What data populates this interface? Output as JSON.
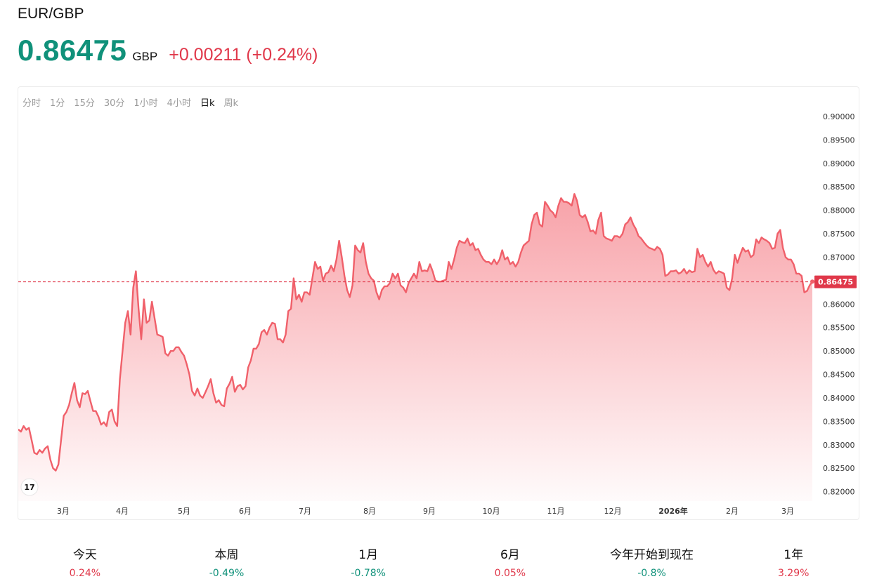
{
  "header": {
    "symbol": "EUR/GBP",
    "price": "0.86475",
    "currency": "GBP",
    "change": "+0.00211 (+0.24%)"
  },
  "timeframes": [
    {
      "label": "分时",
      "active": false
    },
    {
      "label": "1分",
      "active": false
    },
    {
      "label": "15分",
      "active": false
    },
    {
      "label": "30分",
      "active": false
    },
    {
      "label": "1小时",
      "active": false
    },
    {
      "label": "4小时",
      "active": false
    },
    {
      "label": "日k",
      "active": true
    },
    {
      "label": "周k",
      "active": false
    }
  ],
  "colors": {
    "up": "#e0384a",
    "down": "#10917a",
    "line": "#f0606a"
  },
  "logo_icon": "tradingview-logo-icon",
  "chart_data": {
    "type": "area",
    "y_ticks": [
      "0.82000",
      "0.82500",
      "0.83000",
      "0.83500",
      "0.84000",
      "0.84500",
      "0.85000",
      "0.85500",
      "0.86000",
      "0.86500",
      "0.87000",
      "0.87500",
      "0.88000",
      "0.88500",
      "0.89000",
      "0.89500",
      "0.90000"
    ],
    "ylim": [
      0.818,
      0.9
    ],
    "x_tick_labels": [
      "3月",
      "4月",
      "5月",
      "6月",
      "7月",
      "8月",
      "9月",
      "10月",
      "11月",
      "12月",
      "2026年",
      "2月",
      "3月"
    ],
    "current_value": 0.86475,
    "current_label": "0.86475",
    "values": [
      0.8333,
      0.8328,
      0.834,
      0.8332,
      0.8336,
      0.831,
      0.8283,
      0.828,
      0.8289,
      0.8283,
      0.8292,
      0.8297,
      0.8268,
      0.825,
      0.8245,
      0.8258,
      0.831,
      0.8362,
      0.837,
      0.8385,
      0.841,
      0.8432,
      0.8395,
      0.838,
      0.841,
      0.8408,
      0.8415,
      0.8393,
      0.8372,
      0.8372,
      0.836,
      0.8343,
      0.8348,
      0.834,
      0.837,
      0.8375,
      0.835,
      0.834,
      0.844,
      0.85,
      0.856,
      0.8585,
      0.8535,
      0.8635,
      0.867,
      0.859,
      0.8525,
      0.861,
      0.856,
      0.8565,
      0.8605,
      0.857,
      0.8535,
      0.8533,
      0.853,
      0.8495,
      0.849,
      0.85,
      0.85,
      0.8508,
      0.8508,
      0.8498,
      0.849,
      0.8472,
      0.845,
      0.8415,
      0.8405,
      0.842,
      0.8405,
      0.84,
      0.8412,
      0.8425,
      0.844,
      0.841,
      0.839,
      0.8395,
      0.8385,
      0.8382,
      0.842,
      0.843,
      0.8445,
      0.8413,
      0.8425,
      0.8428,
      0.8418,
      0.8425,
      0.8465,
      0.848,
      0.8505,
      0.8505,
      0.8515,
      0.854,
      0.8545,
      0.8535,
      0.855,
      0.856,
      0.8558,
      0.8525,
      0.8525,
      0.8518,
      0.8535,
      0.8585,
      0.859,
      0.8655,
      0.861,
      0.862,
      0.8605,
      0.8625,
      0.8625,
      0.862,
      0.8655,
      0.869,
      0.8675,
      0.868,
      0.865,
      0.8665,
      0.8668,
      0.8682,
      0.867,
      0.8695,
      0.8735,
      0.87,
      0.866,
      0.863,
      0.8615,
      0.864,
      0.8725,
      0.8715,
      0.871,
      0.873,
      0.869,
      0.8665,
      0.8655,
      0.865,
      0.8625,
      0.861,
      0.863,
      0.8638,
      0.8638,
      0.8645,
      0.8665,
      0.8655,
      0.8665,
      0.864,
      0.8635,
      0.8625,
      0.8645,
      0.8655,
      0.8665,
      0.8655,
      0.869,
      0.867,
      0.8672,
      0.867,
      0.8685,
      0.867,
      0.865,
      0.8648,
      0.8648,
      0.865,
      0.8652,
      0.869,
      0.8675,
      0.8695,
      0.872,
      0.8735,
      0.8732,
      0.873,
      0.874,
      0.8725,
      0.873,
      0.8715,
      0.8718,
      0.8705,
      0.8695,
      0.869,
      0.869,
      0.8685,
      0.8695,
      0.8685,
      0.8695,
      0.8715,
      0.8695,
      0.87,
      0.8685,
      0.869,
      0.868,
      0.869,
      0.871,
      0.8725,
      0.873,
      0.8735,
      0.877,
      0.879,
      0.8795,
      0.877,
      0.8765,
      0.8818,
      0.881,
      0.88,
      0.8795,
      0.8785,
      0.881,
      0.8826,
      0.8818,
      0.8818,
      0.8815,
      0.881,
      0.8835,
      0.882,
      0.879,
      0.8785,
      0.879,
      0.8775,
      0.8755,
      0.8757,
      0.875,
      0.878,
      0.8795,
      0.8745,
      0.874,
      0.8738,
      0.8735,
      0.8745,
      0.8745,
      0.8742,
      0.875,
      0.877,
      0.8775,
      0.8785,
      0.877,
      0.876,
      0.8745,
      0.874,
      0.8732,
      0.8725,
      0.872,
      0.8718,
      0.8715,
      0.8722,
      0.8718,
      0.8705,
      0.866,
      0.8663,
      0.867,
      0.867,
      0.8672,
      0.8665,
      0.8668,
      0.8675,
      0.8665,
      0.8672,
      0.8668,
      0.867,
      0.8718,
      0.87,
      0.8705,
      0.869,
      0.868,
      0.869,
      0.8673,
      0.8665,
      0.867,
      0.8668,
      0.8665,
      0.8635,
      0.863,
      0.8655,
      0.8705,
      0.8688,
      0.8705,
      0.872,
      0.8712,
      0.8715,
      0.87,
      0.8705,
      0.8738,
      0.873,
      0.8742,
      0.8738,
      0.8735,
      0.873,
      0.8718,
      0.872,
      0.875,
      0.8758,
      0.872,
      0.87,
      0.8695,
      0.8695,
      0.8685,
      0.8665,
      0.8665,
      0.866,
      0.8625,
      0.8628,
      0.864,
      0.8648
    ]
  },
  "stats": [
    {
      "label": "今天",
      "value": "0.24%",
      "direction": "up"
    },
    {
      "label": "本周",
      "value": "-0.49%",
      "direction": "down"
    },
    {
      "label": "1月",
      "value": "-0.78%",
      "direction": "down"
    },
    {
      "label": "6月",
      "value": "0.05%",
      "direction": "up"
    },
    {
      "label": "今年开始到现在",
      "value": "-0.8%",
      "direction": "down"
    },
    {
      "label": "1年",
      "value": "3.29%",
      "direction": "up"
    }
  ]
}
